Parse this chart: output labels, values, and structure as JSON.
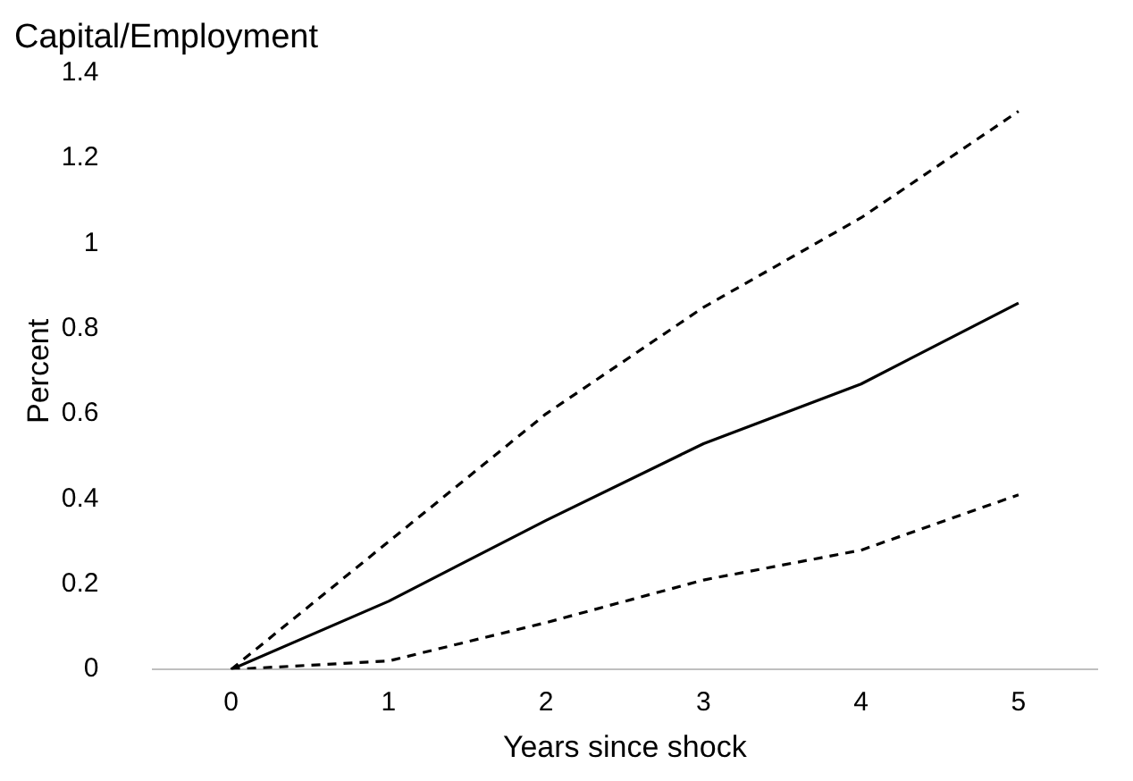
{
  "chart_data": {
    "type": "line",
    "title": "Capital/Employment",
    "xlabel": "Years since shock",
    "ylabel": "Percent",
    "categories": [
      "0",
      "1",
      "2",
      "3",
      "4",
      "5"
    ],
    "series": [
      {
        "color": "#000000",
        "line_style": "solid",
        "values": [
          0,
          0.16,
          0.35,
          0.53,
          0.67,
          0.86
        ]
      },
      {
        "color": "#000000",
        "line_style": "dashed",
        "values": [
          0,
          0.3,
          0.6,
          0.85,
          1.06,
          1.31
        ]
      },
      {
        "color": "#000000",
        "line_style": "dashed",
        "values": [
          0,
          0.02,
          0.11,
          0.21,
          0.28,
          0.41
        ]
      }
    ],
    "ylim": [
      0,
      1.4
    ],
    "yticks": [
      0,
      0.2,
      0.4,
      0.6,
      0.8,
      1,
      1.2,
      1.4
    ],
    "grid": false,
    "legend": false,
    "marker": "none"
  }
}
